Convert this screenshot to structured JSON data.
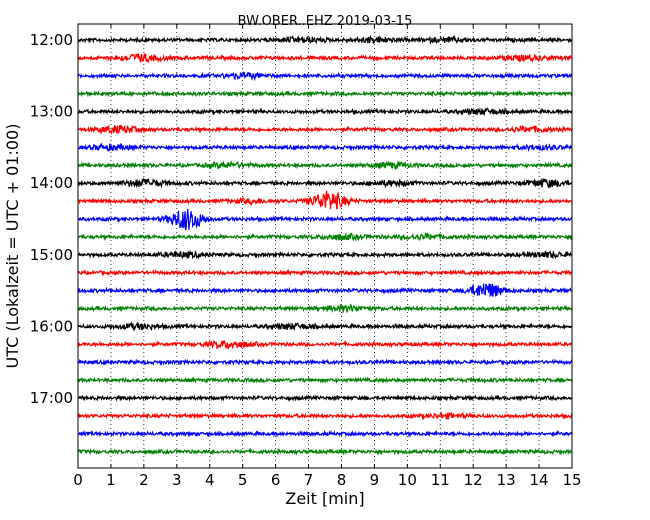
{
  "chart_data": {
    "type": "line",
    "title": "BW.OBER..EHZ 2019-03-15",
    "xlabel": "Zeit  [min]",
    "ylabel": "UTC (Lokalzeit = UTC + 01:00)",
    "xlim": [
      0,
      15
    ],
    "xticks": [
      0,
      1,
      2,
      3,
      4,
      5,
      6,
      7,
      8,
      9,
      10,
      11,
      12,
      13,
      14,
      15
    ],
    "yticks": [
      {
        "label": "12:00",
        "trace": 0
      },
      {
        "label": "13:00",
        "trace": 4
      },
      {
        "label": "14:00",
        "trace": 8
      },
      {
        "label": "15:00",
        "trace": 12
      },
      {
        "label": "16:00",
        "trace": 16
      },
      {
        "label": "17:00",
        "trace": 20
      }
    ],
    "trace_interval_min": 15,
    "colors": [
      "#000000",
      "#ff0000",
      "#0000ff",
      "#008000"
    ],
    "grid": "vertical-dotted",
    "traces": [
      {
        "start": "12:00",
        "color": "#000000",
        "events": [
          {
            "t": 6.8,
            "amp": 2
          },
          {
            "t": 9.0,
            "amp": 2
          },
          {
            "t": 11.2,
            "amp": 1.5
          }
        ]
      },
      {
        "start": "12:15",
        "color": "#ff0000",
        "events": [
          {
            "t": 1.9,
            "amp": 3
          },
          {
            "t": 13.6,
            "amp": 2
          }
        ]
      },
      {
        "start": "12:30",
        "color": "#0000ff",
        "events": [
          {
            "t": 5.0,
            "amp": 2
          }
        ]
      },
      {
        "start": "12:45",
        "color": "#008000",
        "events": []
      },
      {
        "start": "13:00",
        "color": "#000000",
        "events": [
          {
            "t": 12.3,
            "amp": 2
          }
        ]
      },
      {
        "start": "13:15",
        "color": "#ff0000",
        "events": [
          {
            "t": 1.2,
            "amp": 3
          },
          {
            "t": 13.7,
            "amp": 2
          }
        ]
      },
      {
        "start": "13:30",
        "color": "#0000ff",
        "events": [
          {
            "t": 1.0,
            "amp": 2
          },
          {
            "t": 14.0,
            "amp": 1.5
          }
        ]
      },
      {
        "start": "13:45",
        "color": "#008000",
        "events": [
          {
            "t": 4.5,
            "amp": 2
          },
          {
            "t": 9.5,
            "amp": 2
          }
        ]
      },
      {
        "start": "14:00",
        "color": "#000000",
        "events": [
          {
            "t": 2.0,
            "amp": 3
          },
          {
            "t": 9.5,
            "amp": 2
          },
          {
            "t": 14.2,
            "amp": 3
          }
        ]
      },
      {
        "start": "14:15",
        "color": "#ff0000",
        "events": [
          {
            "t": 7.6,
            "amp": 9
          },
          {
            "t": 5.3,
            "amp": 1.5
          }
        ]
      },
      {
        "start": "14:30",
        "color": "#0000ff",
        "events": [
          {
            "t": 3.3,
            "amp": 10
          }
        ]
      },
      {
        "start": "14:45",
        "color": "#008000",
        "events": [
          {
            "t": 8.0,
            "amp": 2
          },
          {
            "t": 10.5,
            "amp": 2
          }
        ]
      },
      {
        "start": "15:00",
        "color": "#000000",
        "events": [
          {
            "t": 3.2,
            "amp": 2
          },
          {
            "t": 14.2,
            "amp": 2
          }
        ]
      },
      {
        "start": "15:15",
        "color": "#ff0000",
        "events": []
      },
      {
        "start": "15:30",
        "color": "#0000ff",
        "events": [
          {
            "t": 12.4,
            "amp": 7
          }
        ]
      },
      {
        "start": "15:45",
        "color": "#008000",
        "events": [
          {
            "t": 8.1,
            "amp": 2.5
          }
        ]
      },
      {
        "start": "16:00",
        "color": "#000000",
        "events": [
          {
            "t": 1.8,
            "amp": 2
          },
          {
            "t": 6.5,
            "amp": 2
          }
        ]
      },
      {
        "start": "16:15",
        "color": "#ff0000",
        "events": [
          {
            "t": 4.6,
            "amp": 3
          }
        ]
      },
      {
        "start": "16:30",
        "color": "#0000ff",
        "events": []
      },
      {
        "start": "16:45",
        "color": "#008000",
        "events": []
      },
      {
        "start": "17:00",
        "color": "#000000",
        "events": []
      },
      {
        "start": "17:15",
        "color": "#ff0000",
        "events": [
          {
            "t": 11.2,
            "amp": 1.5
          }
        ]
      },
      {
        "start": "17:30",
        "color": "#0000ff",
        "events": []
      },
      {
        "start": "17:45",
        "color": "#008000",
        "events": []
      }
    ]
  }
}
